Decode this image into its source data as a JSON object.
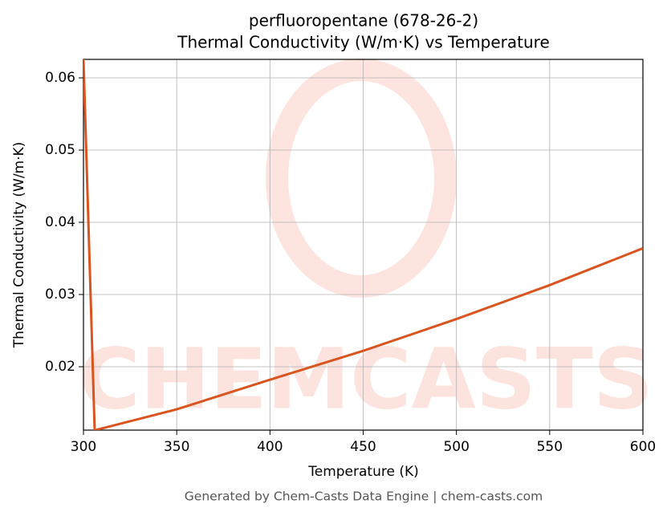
{
  "chart_data": {
    "type": "line",
    "title": "perfluoropentane (678-26-2)",
    "subtitle": "Thermal Conductivity (W/m·K) vs Temperature",
    "xlabel": "Temperature (K)",
    "ylabel": "Thermal Conductivity (W/m·K)",
    "watermark": "CHEMCASTS",
    "footer": "Generated by Chem-Casts Data Engine | chem-casts.com",
    "x": [
      300,
      306,
      350,
      400,
      450,
      500,
      550,
      600
    ],
    "series": [
      {
        "name": "Thermal Conductivity",
        "color": "#d9541e",
        "values": [
          0.0626,
          0.0112,
          0.0141,
          0.0182,
          0.0222,
          0.0266,
          0.0313,
          0.0364
        ]
      }
    ],
    "xlim": [
      300,
      600
    ],
    "xticks": [
      300,
      350,
      400,
      450,
      500,
      550,
      600
    ],
    "ylim": [
      0.01122,
      0.06256
    ],
    "yticks": [
      0.02,
      0.03,
      0.04,
      0.05,
      0.06
    ],
    "grid": true
  }
}
